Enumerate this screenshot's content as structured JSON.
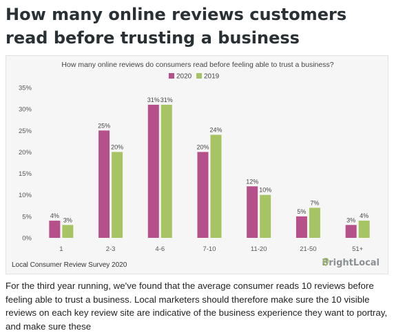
{
  "heading": "How many online reviews customers read before trusting a business",
  "chart_data": {
    "type": "bar",
    "title": "How many online reviews do consumers read before feeling able to trust a business?",
    "categories": [
      "1",
      "2-3",
      "4-6",
      "7-10",
      "11-20",
      "21-50",
      "51+"
    ],
    "series": [
      {
        "name": "2020",
        "values": [
          4,
          25,
          31,
          20,
          12,
          5,
          3
        ],
        "labels": [
          "4%",
          "25%",
          "31%",
          "20%",
          "12%",
          "5%",
          "3%"
        ],
        "color": "#b5508a"
      },
      {
        "name": "2019",
        "values": [
          3,
          20,
          31,
          24,
          10,
          7,
          4
        ],
        "labels": [
          "3%",
          "20%",
          "31%",
          "24%",
          "10%",
          "7%",
          "4%"
        ],
        "color": "#a6c463"
      }
    ],
    "ylim": [
      0,
      35
    ],
    "yticks": [
      "0%",
      "5%",
      "10%",
      "15%",
      "20%",
      "25%",
      "30%",
      "35%"
    ],
    "legend_position": "top-center",
    "grid": false
  },
  "source": "Local Consumer Review Survey 2020",
  "brand": {
    "name": "BrightLocal",
    "icon": "map-pin-icon",
    "color": "#8a8f93"
  },
  "body_text": "For the third year running, we've found that the average consumer reads 10 reviews before feeling able to trust a business. Local marketers should therefore make sure the 10 visible reviews on each key review site are indicative of the business experience they want to portray, and make sure these"
}
